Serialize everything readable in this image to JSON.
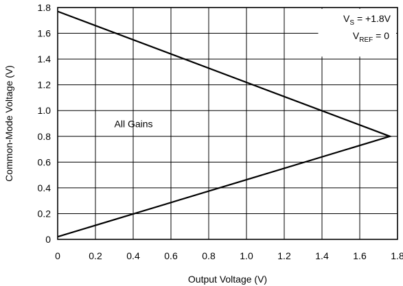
{
  "chart_data": {
    "type": "line",
    "title": "",
    "xlabel": "Output Voltage (V)",
    "ylabel": "Common-Mode Voltage (V)",
    "xlim": [
      0,
      1.8
    ],
    "ylim": [
      0,
      1.8
    ],
    "x_ticks": [
      "0",
      "0.2",
      "0.4",
      "0.6",
      "0.8",
      "1.0",
      "1.2",
      "1.4",
      "1.6",
      "1.8"
    ],
    "y_ticks": [
      "0",
      "0.2",
      "0.4",
      "0.6",
      "0.8",
      "1.0",
      "1.2",
      "1.4",
      "1.6",
      "1.8"
    ],
    "grid": true,
    "series": [
      {
        "x": [
          0.0,
          1.76,
          0.0
        ],
        "y": [
          1.77,
          0.8,
          0.02
        ]
      }
    ],
    "annotations": {
      "all_gains": "All Gains",
      "vs_main": "V",
      "vs_sub": "S",
      "vs_value": " = +1.8V",
      "vref_main": "V",
      "vref_sub": "REF",
      "vref_value": " = 0"
    },
    "colors": {
      "line": "#000000",
      "grid": "#000000",
      "background": "#ffffff"
    }
  }
}
